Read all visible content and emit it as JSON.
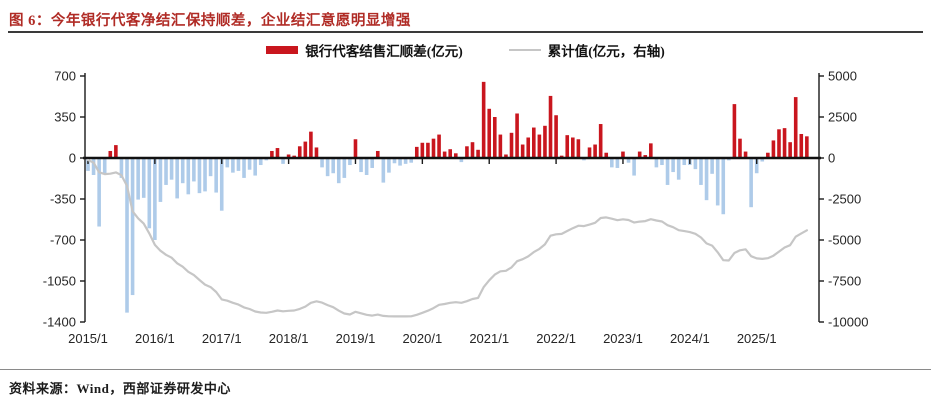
{
  "title": "图 6：今年银行代客净结汇保持顺差，企业结汇意愿明显增强",
  "source": "资料来源：Wind，西部证券研发中心",
  "colors": {
    "title_red": "#B02B25",
    "bar_positive": "#C9161E",
    "bar_negative": "#AECBE9",
    "line_gray": "#C6C6C6",
    "axis_black": "#1a1a1a",
    "tick_text": "#262626"
  },
  "legend": [
    {
      "label": "银行代客结售汇顺差(亿元)",
      "type": "bar"
    },
    {
      "label": "累计值(亿元，右轴)",
      "type": "line"
    }
  ],
  "chart_data": {
    "type": "bar",
    "title": "今年银行代客净结汇保持顺差，企业结汇意愿明显增强",
    "x_start_month": "2015/1",
    "x_end_month": "2025/10",
    "x_tick_labels": [
      "2015/1",
      "2016/1",
      "2017/1",
      "2018/1",
      "2019/1",
      "2020/1",
      "2021/1",
      "2022/1",
      "2023/1",
      "2024/1",
      "2025/1"
    ],
    "left_axis": {
      "label": "银行代客结售汇顺差(亿元)",
      "ticks": [
        700,
        350,
        0,
        -350,
        -700,
        -1050,
        -1400
      ],
      "min": -1400,
      "max": 700
    },
    "right_axis": {
      "label": "累计值(亿元，右轴)",
      "ticks": [
        5000,
        2500,
        0,
        -2500,
        -5000,
        -7500,
        -10000
      ],
      "min": -10000,
      "max": 5000
    },
    "grid": false,
    "legend_position": "top",
    "series": [
      {
        "name": "银行代客结售汇顺差(亿元)",
        "type": "bar",
        "axis": "left",
        "values": [
          -110,
          -145,
          -585,
          -130,
          60,
          110,
          -170,
          -1320,
          -1170,
          -355,
          -340,
          -600,
          -700,
          -375,
          -230,
          -185,
          -345,
          -215,
          -310,
          -200,
          -300,
          -285,
          -155,
          -295,
          -450,
          -80,
          -125,
          -110,
          -170,
          -100,
          -150,
          -60,
          -20,
          60,
          85,
          -50,
          30,
          20,
          100,
          140,
          225,
          90,
          -80,
          -155,
          -130,
          -215,
          -170,
          -60,
          160,
          -120,
          -145,
          -85,
          60,
          -210,
          -125,
          -45,
          -65,
          -50,
          -40,
          95,
          130,
          130,
          165,
          200,
          55,
          75,
          40,
          -35,
          100,
          135,
          70,
          650,
          420,
          350,
          200,
          30,
          215,
          380,
          115,
          175,
          260,
          200,
          275,
          530,
          365,
          20,
          195,
          175,
          160,
          -20,
          90,
          115,
          290,
          45,
          -80,
          -85,
          55,
          -40,
          -150,
          55,
          25,
          125,
          -80,
          -60,
          -230,
          -120,
          -185,
          -60,
          -60,
          -95,
          -230,
          -360,
          -135,
          -405,
          -480,
          -20,
          460,
          165,
          55,
          -420,
          -130,
          -30,
          45,
          150,
          245,
          255,
          135,
          520,
          205,
          185
        ]
      },
      {
        "name": "累计值(亿元，右轴)",
        "type": "line",
        "axis": "right",
        "values": [
          -120,
          -280,
          -870,
          -980,
          -960,
          -880,
          -1050,
          -1700,
          -3250,
          -3680,
          -4000,
          -4600,
          -5300,
          -5650,
          -5900,
          -6080,
          -6420,
          -6630,
          -6940,
          -7140,
          -7440,
          -7720,
          -7870,
          -8170,
          -8620,
          -8700,
          -8830,
          -8940,
          -9110,
          -9210,
          -9360,
          -9420,
          -9440,
          -9380,
          -9300,
          -9350,
          -9320,
          -9300,
          -9200,
          -9060,
          -8830,
          -8740,
          -8820,
          -8970,
          -9100,
          -9310,
          -9480,
          -9540,
          -9380,
          -9470,
          -9560,
          -9610,
          -9550,
          -9630,
          -9650,
          -9660,
          -9660,
          -9660,
          -9650,
          -9560,
          -9440,
          -9310,
          -9150,
          -8950,
          -8900,
          -8830,
          -8790,
          -8830,
          -8730,
          -8600,
          -8530,
          -7880,
          -7460,
          -7110,
          -6910,
          -6880,
          -6670,
          -6290,
          -6170,
          -6000,
          -5740,
          -5540,
          -5270,
          -4740,
          -4650,
          -4630,
          -4450,
          -4280,
          -4130,
          -4150,
          -4060,
          -3950,
          -3660,
          -3620,
          -3700,
          -3790,
          -3740,
          -3780,
          -3930,
          -3880,
          -3850,
          -3730,
          -3810,
          -3870,
          -4100,
          -4220,
          -4400,
          -4460,
          -4520,
          -4620,
          -4850,
          -5210,
          -5340,
          -5750,
          -6230,
          -6250,
          -5790,
          -5630,
          -5570,
          -5990,
          -6120,
          -6150,
          -6110,
          -5960,
          -5710,
          -5460,
          -5320,
          -4800,
          -4600,
          -4410
        ]
      }
    ]
  }
}
